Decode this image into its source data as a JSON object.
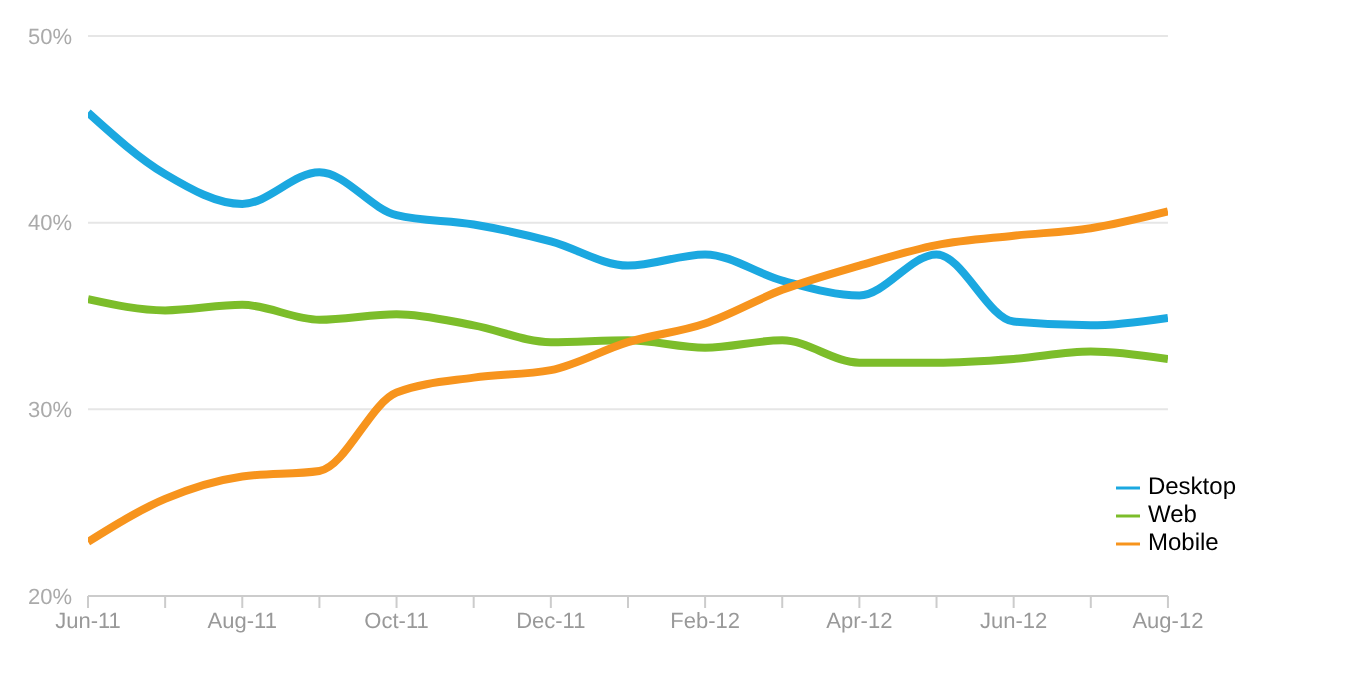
{
  "chart_data": {
    "type": "line",
    "categories": [
      "Jun-11",
      null,
      "Aug-11",
      null,
      "Oct-11",
      null,
      "Dec-11",
      null,
      "Feb-12",
      null,
      "Apr-12",
      null,
      "Jun-12",
      null,
      "Aug-12"
    ],
    "series": [
      {
        "name": "Desktop",
        "color": "#1ba8e0",
        "values": [
          45.9,
          42.6,
          41.0,
          42.7,
          40.4,
          39.9,
          39.0,
          37.7,
          38.3,
          36.9,
          36.1,
          38.3,
          34.7,
          34.5,
          34.9
        ]
      },
      {
        "name": "Web",
        "color": "#7cbd2a",
        "values": [
          35.9,
          35.3,
          35.6,
          34.8,
          35.1,
          34.5,
          33.6,
          33.7,
          33.3,
          33.7,
          32.5,
          32.5,
          32.7,
          33.1,
          32.7
        ]
      },
      {
        "name": "Mobile",
        "color": "#f7941d",
        "values": [
          22.9,
          25.2,
          26.4,
          26.7,
          30.9,
          31.7,
          32.1,
          33.6,
          34.6,
          36.4,
          37.7,
          38.8,
          39.3,
          39.7,
          40.6
        ]
      }
    ],
    "ylim": [
      20,
      50
    ],
    "yticks": [
      {
        "value": 20,
        "label": "20%"
      },
      {
        "value": 30,
        "label": "30%"
      },
      {
        "value": 40,
        "label": "40%"
      },
      {
        "value": 50,
        "label": "50%"
      }
    ],
    "grid": "y",
    "legend": "bottom right",
    "marker": "none",
    "line_style": "solid"
  }
}
